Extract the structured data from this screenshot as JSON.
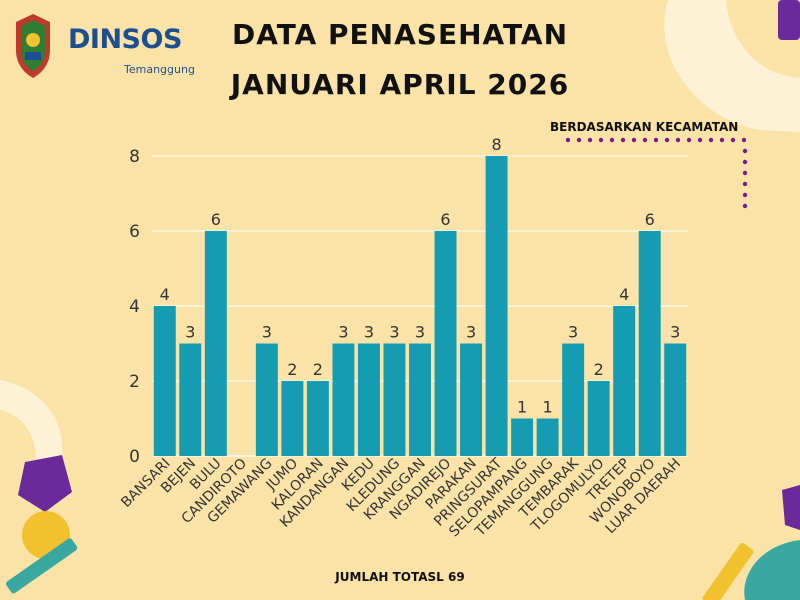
{
  "brand": {
    "logo_text": "DINSOS",
    "logo_subtext": "Temanggung"
  },
  "header": {
    "title_line1": "DATA PENASEHATAN",
    "title_line2": "JANUARI APRIL 2026",
    "subnote": "BERDASARKAN KECAMATAN"
  },
  "footer": {
    "total_label": "JUMLAH TOTASL 69"
  },
  "colors": {
    "background": "#fbe3a8",
    "bar": "#169cb2",
    "grid": "#ffffff",
    "dots": "#7b1a8a",
    "decor_purple": "#6b2a9a",
    "decor_yellow": "#f2c12e",
    "decor_teal": "#3aa8a0",
    "decor_cream": "#fdf2d6"
  },
  "chart_data": {
    "type": "bar",
    "categories": [
      "BANSARI",
      "BEJEN",
      "BULU",
      "CANDIROTO",
      "GEMAWANG",
      "JUMO",
      "KALORAN",
      "KANDANGAN",
      "KEDU",
      "KLEDUNG",
      "KRANGGAN",
      "NGADIREJO",
      "PARAKAN",
      "PRINGSURAT",
      "SELOPAMPANG",
      "TEMANGGUNG",
      "TEMBARAK",
      "TLOGOMULYO",
      "TRETEP",
      "WONOBOYO",
      "LUAR DAERAH"
    ],
    "values": [
      4,
      3,
      6,
      0,
      3,
      2,
      2,
      3,
      3,
      3,
      3,
      6,
      3,
      8,
      1,
      1,
      3,
      2,
      4,
      6,
      3
    ],
    "value_labels": [
      "4",
      "3",
      "6",
      "",
      "3",
      "2",
      "2",
      "3",
      "3",
      "3",
      "3",
      "6",
      "3",
      "8",
      "1",
      "1",
      "3",
      "2",
      "4",
      "6",
      "3"
    ],
    "title": "DATA PENASEHATAN JANUARI APRIL 2026",
    "xlabel": "",
    "ylabel": "",
    "ylim": [
      0,
      8
    ],
    "yticks": [
      0,
      2,
      4,
      6,
      8
    ],
    "grid": true,
    "data_labels": true
  }
}
